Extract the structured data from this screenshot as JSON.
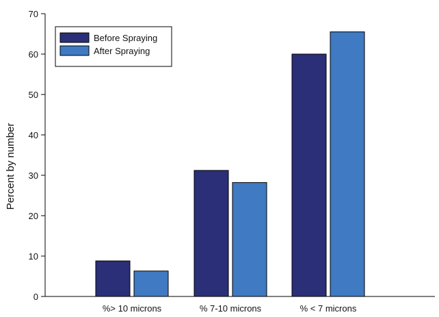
{
  "chart_data": {
    "type": "bar",
    "title": "",
    "xlabel": "",
    "ylabel": "Percent by number",
    "categories": [
      "%> 10 microns",
      "% 7-10 microns",
      "% < 7 microns"
    ],
    "series": [
      {
        "name": "Before Spraying",
        "values": [
          8.8,
          31.2,
          60.0
        ],
        "color": "#2b2f78"
      },
      {
        "name": "After Spraying",
        "values": [
          6.3,
          28.2,
          65.5
        ],
        "color": "#3f7ac2"
      }
    ],
    "ylim": [
      0,
      70
    ],
    "yticks": [
      0,
      10,
      20,
      30,
      40,
      50,
      60,
      70
    ],
    "grid": false,
    "legend_position": "top-left"
  }
}
